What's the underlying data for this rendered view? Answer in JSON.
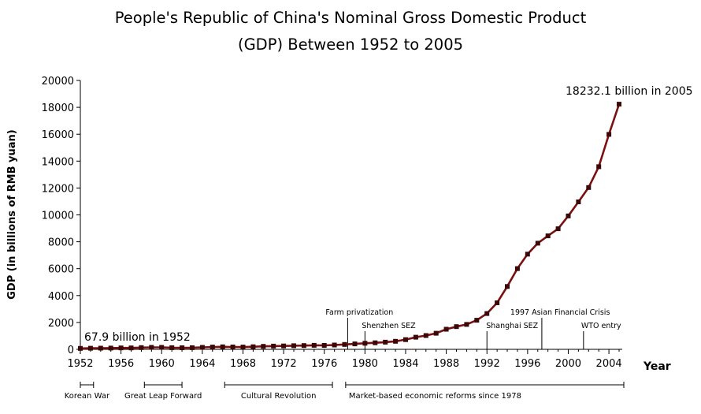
{
  "chart_data": {
    "type": "line",
    "title": "People's Republic of China's Nominal Gross Domestic Product",
    "subtitle": "(GDP) Between 1952 to 2005",
    "xlabel": "Year",
    "ylabel": "GDP (in billions of RMB yuan)",
    "xlim": [
      1952,
      2005
    ],
    "ylim": [
      0,
      20000
    ],
    "xticks": [
      1952,
      1956,
      1960,
      1964,
      1968,
      1972,
      1976,
      1980,
      1984,
      1988,
      1992,
      1996,
      2000,
      2004
    ],
    "yticks": [
      0,
      2000,
      4000,
      6000,
      8000,
      10000,
      12000,
      14000,
      16000,
      18000,
      20000
    ],
    "grid": false,
    "line_color": "#7a1010",
    "marker_color": "#3a0808",
    "series": [
      {
        "x": [
          1952,
          1953,
          1954,
          1955,
          1956,
          1957,
          1958,
          1959,
          1960,
          1961,
          1962,
          1963,
          1964,
          1965,
          1966,
          1967,
          1968,
          1969,
          1970,
          1971,
          1972,
          1973,
          1974,
          1975,
          1976,
          1977,
          1978,
          1979,
          1980,
          1981,
          1982,
          1983,
          1984,
          1985,
          1986,
          1987,
          1988,
          1989,
          1990,
          1991,
          1992,
          1993,
          1994,
          1995,
          1996,
          1997,
          1998,
          1999,
          2000,
          2001,
          2002,
          2003,
          2004,
          2005
        ],
        "y": [
          67.9,
          82,
          86,
          91,
          103,
          107,
          131,
          144,
          146,
          122,
          115,
          123,
          145,
          172,
          187,
          177,
          172,
          193,
          225,
          243,
          252,
          272,
          279,
          300,
          294,
          320,
          365,
          406,
          454,
          489,
          532,
          596,
          721,
          902,
          1027,
          1196,
          1493,
          1691,
          1855,
          2162,
          2664,
          3463,
          4676,
          6003,
          7079,
          7897,
          8440,
          8968,
          9921,
          10966,
          12033,
          13582,
          15988,
          18232.1
        ]
      }
    ],
    "callouts": {
      "start": "67.9 billion in 1952",
      "end": "18232.1 billion in 2005"
    },
    "events": [
      {
        "label": "Farm privatization",
        "year": 1978.3,
        "label_level": 2
      },
      {
        "label": "Shenzhen SEZ",
        "year": 1980,
        "label_level": 1
      },
      {
        "label": "Shanghai SEZ",
        "year": 1992,
        "label_level": 1
      },
      {
        "label": "1997 Asian Financial Crisis",
        "year": 1997.4,
        "label_level": 2
      },
      {
        "label": "WTO entry",
        "year": 2001.5,
        "label_level": 1
      }
    ],
    "eras": [
      {
        "label": "Korean War",
        "start": 1952,
        "end": 1953.3
      },
      {
        "label": "Great Leap Forward",
        "start": 1958.3,
        "end": 1962
      },
      {
        "label": "Cultural Revolution",
        "start": 1966.2,
        "end": 1976.8
      },
      {
        "label": "Market-based economic reforms since 1978",
        "start": 1978.1,
        "end": 2005.5
      }
    ]
  }
}
